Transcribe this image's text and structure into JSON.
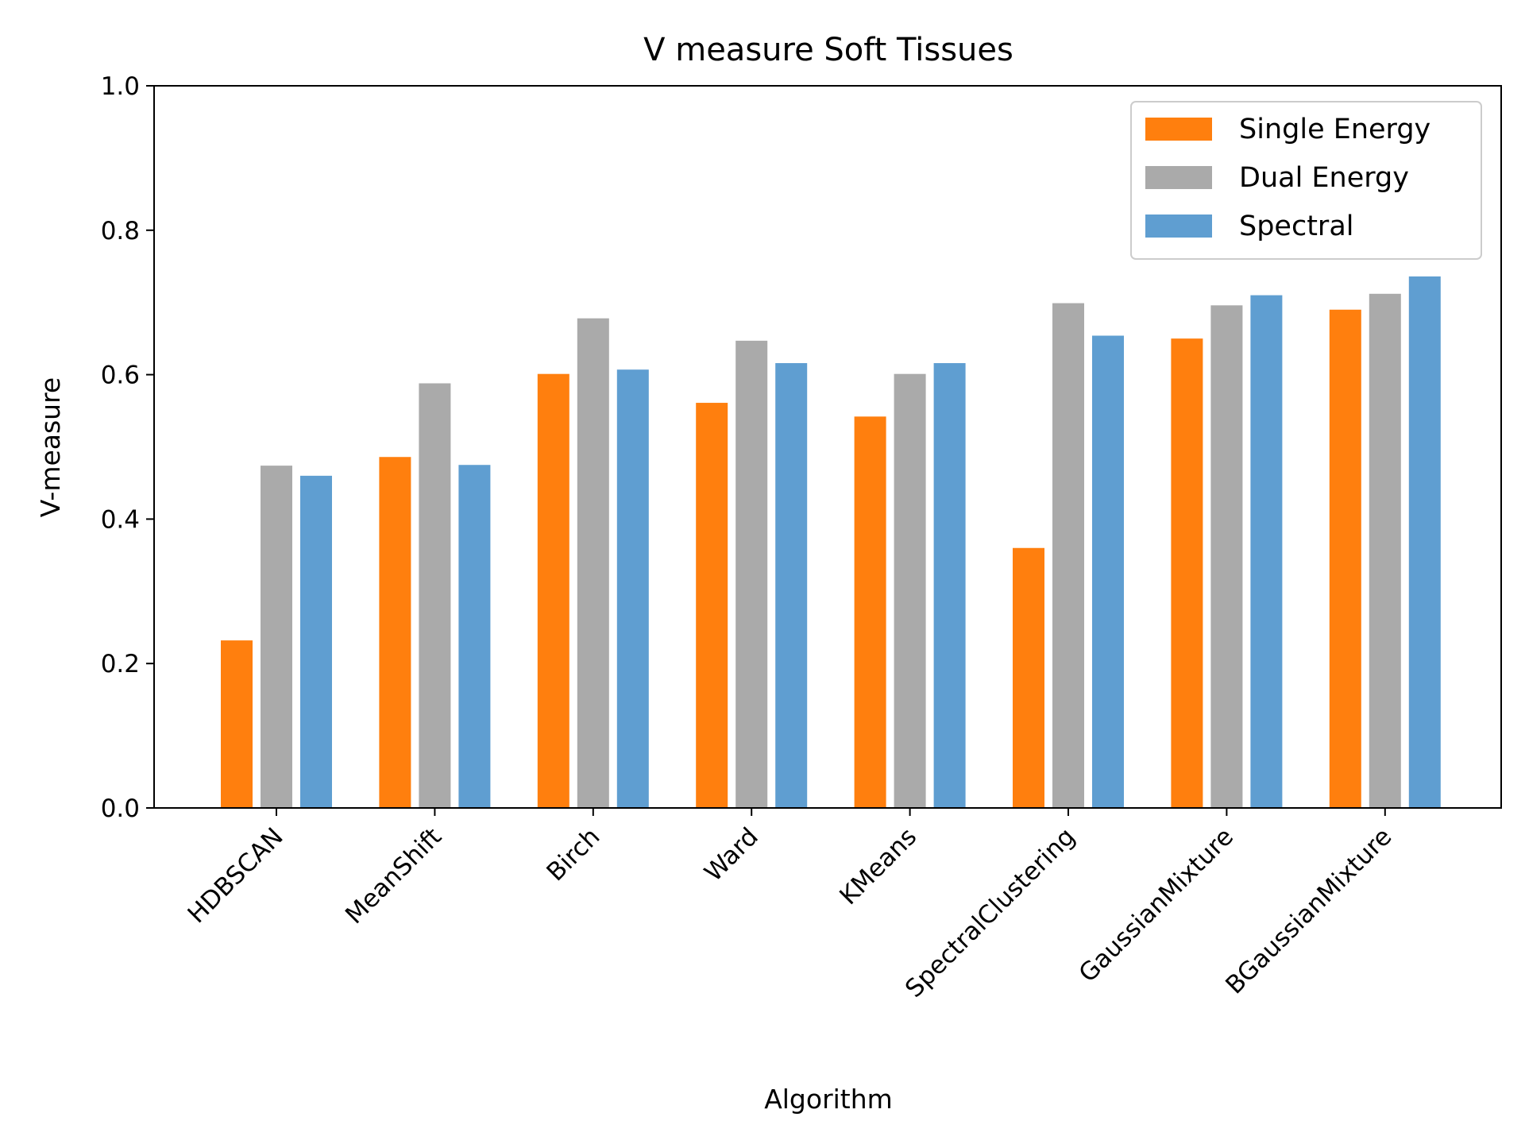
{
  "chart_data": {
    "type": "bar",
    "title": "V measure Soft Tissues",
    "xlabel": "Algorithm",
    "ylabel": "V-measure",
    "ylim": [
      0,
      1.0
    ],
    "yticks": [
      "0.0",
      "0.2",
      "0.4",
      "0.6",
      "0.8",
      "1.0"
    ],
    "grid": false,
    "legend_position": "top-right",
    "categories": [
      "HDBSCAN",
      "MeanShift",
      "Birch",
      "Ward",
      "KMeans",
      "SpectralClustering",
      "GaussianMixture",
      "BGaussianMixture"
    ],
    "series": [
      {
        "name": "Single Energy",
        "color": "#ff7f0e",
        "values": [
          0.232,
          0.486,
          0.601,
          0.561,
          0.542,
          0.36,
          0.65,
          0.69
        ]
      },
      {
        "name": "Dual Energy",
        "color": "#aaaaaa",
        "values": [
          0.474,
          0.588,
          0.678,
          0.647,
          0.601,
          0.699,
          0.696,
          0.712
        ]
      },
      {
        "name": "Spectral",
        "color": "#5f9ed1",
        "values": [
          0.46,
          0.475,
          0.607,
          0.616,
          0.616,
          0.654,
          0.71,
          0.736
        ]
      }
    ]
  }
}
